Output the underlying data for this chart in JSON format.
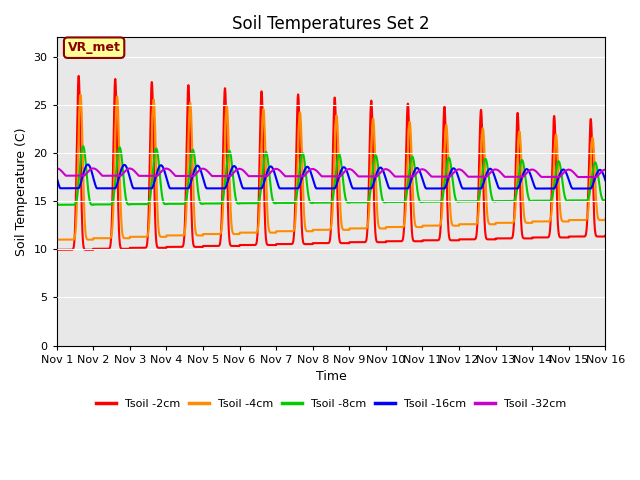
{
  "title": "Soil Temperatures Set 2",
  "xlabel": "Time",
  "ylabel": "Soil Temperature (C)",
  "annotation_text": "VR_met",
  "annotation_color": "#8B0000",
  "annotation_bg": "#FFFF99",
  "xlim_days": 15,
  "ylim": [
    0,
    32
  ],
  "yticks": [
    0,
    5,
    10,
    15,
    20,
    25,
    30
  ],
  "xtick_labels": [
    "Nov 1",
    "Nov 2",
    "Nov 3",
    "Nov 4",
    "Nov 5",
    "Nov 6",
    "Nov 7",
    "Nov 8",
    "Nov 9",
    "Nov 10",
    "Nov 11",
    "Nov 12",
    "Nov 13",
    "Nov 14",
    "Nov 15",
    "Nov 16"
  ],
  "series_colors": [
    "#FF0000",
    "#FF8C00",
    "#00CC00",
    "#0000FF",
    "#CC00CC"
  ],
  "series_labels": [
    "Tsoil -2cm",
    "Tsoil -4cm",
    "Tsoil -8cm",
    "Tsoil -16cm",
    "Tsoil -32cm"
  ],
  "bg_color": "#E8E8E8",
  "fig_bg": "#FFFFFF",
  "linewidth": 1.5,
  "grid_color": "#FFFFFF",
  "grid_alpha": 1.0
}
